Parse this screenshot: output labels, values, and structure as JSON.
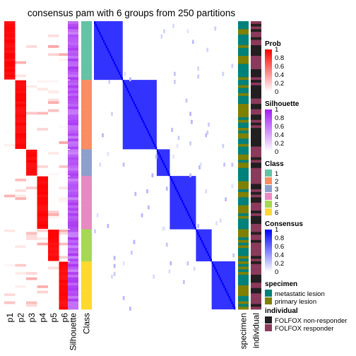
{
  "title": "consensus pam with 6 groups from 250 partitions",
  "colors": {
    "prob_high": "#ff0000",
    "silhouette_high": "#a020f0",
    "consensus_high": "#0000ff",
    "class": [
      "#66c2a5",
      "#fc8d62",
      "#8da0cb",
      "#e78ac3",
      "#a6d854",
      "#ffd92f"
    ],
    "specimen": {
      "metastatic lesion": "#00817a",
      "primary lesion": "#808000"
    },
    "individual": {
      "FOLFOX non-responder": "#231f20",
      "FOLFOX responder": "#8a3a5a"
    }
  },
  "chart_data": {
    "type": "heatmap",
    "title": "consensus pam with 6 groups from 250 partitions",
    "columns": [
      "p1",
      "p2",
      "p3",
      "p4",
      "p5",
      "p6",
      "Silhouette",
      "Class"
    ],
    "annotation_columns": [
      "specimen",
      "individual"
    ],
    "groups": [
      {
        "class": 1,
        "size": 22
      },
      {
        "class": 2,
        "size": 26
      },
      {
        "class": 3,
        "size": 10
      },
      {
        "class": 4,
        "size": 20
      },
      {
        "class": 5,
        "size": 12
      },
      {
        "class": 6,
        "size": 18
      }
    ],
    "legends": [
      {
        "title": "Prob",
        "ticks": [
          "1",
          "0.8",
          "0.6",
          "0.4",
          "0.2",
          "0"
        ]
      },
      {
        "title": "Silhouette",
        "ticks": [
          "1",
          "0.8",
          "0.6",
          "0.4",
          "0.2",
          "0"
        ]
      },
      {
        "title": "Class",
        "items": [
          "1",
          "2",
          "3",
          "4",
          "5",
          "6"
        ]
      },
      {
        "title": "Consensus",
        "ticks": [
          "1",
          "0.8",
          "0.6",
          "0.4",
          "0.2",
          "0"
        ]
      },
      {
        "title": "specimen",
        "items": [
          "metastatic lesion",
          "primary lesion"
        ]
      },
      {
        "title": "individual",
        "items": [
          "FOLFOX non-responder",
          "FOLFOX responder"
        ]
      }
    ]
  }
}
